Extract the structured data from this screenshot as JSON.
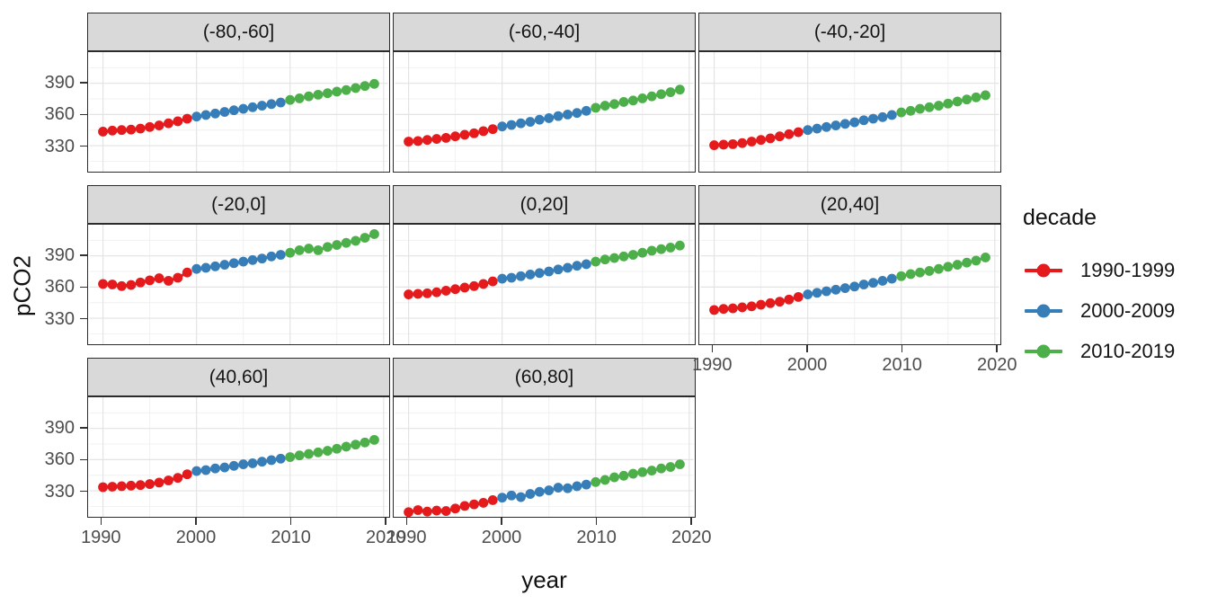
{
  "chart_data": {
    "type": "line",
    "xlabel": "year",
    "ylabel": "pCO2",
    "x_domain": [
      1988.55,
      2020.45
    ],
    "y_domain": [
      305,
      420
    ],
    "x_ticks": [
      1990,
      2000,
      2010,
      2020
    ],
    "x_minor": [
      1995,
      2005,
      2015
    ],
    "y_ticks": [
      330,
      360,
      390
    ],
    "y_minor": [
      315,
      345,
      375,
      405
    ],
    "grid": true,
    "legend": {
      "title": "decade",
      "position": "right",
      "entries": [
        {
          "label": "1990-1999",
          "color": "#E41A1C"
        },
        {
          "label": "2000-2009",
          "color": "#377EB8"
        },
        {
          "label": "2010-2019",
          "color": "#4DAF4A"
        }
      ]
    },
    "years": {
      "start": 1990,
      "end": 2019
    },
    "panels": [
      {
        "label": "(-80,-60]",
        "series": [
          {
            "name": "1990-1999",
            "values": [
              343.5,
              344.5,
              345,
              345.5,
              346.5,
              348,
              349.5,
              351.5,
              353.5,
              356
            ]
          },
          {
            "name": "2000-2009",
            "values": [
              358,
              359.5,
              361,
              362.5,
              364,
              365.5,
              367,
              368.5,
              370,
              371.5
            ]
          },
          {
            "name": "2010-2019",
            "values": [
              374,
              375.5,
              377.5,
              379,
              380.5,
              382,
              383.5,
              385.5,
              387.5,
              389.5
            ]
          }
        ]
      },
      {
        "label": "(-60,-40]",
        "series": [
          {
            "name": "1990-1999",
            "values": [
              334,
              334.5,
              335.5,
              336.5,
              337.5,
              339,
              340.5,
              342,
              344,
              346
            ]
          },
          {
            "name": "2000-2009",
            "values": [
              348.5,
              350,
              351.5,
              353,
              355,
              356.5,
              358.5,
              360,
              361.5,
              363.5
            ]
          },
          {
            "name": "2010-2019",
            "values": [
              366.5,
              368.5,
              370,
              372,
              373.5,
              375.5,
              377.5,
              379.5,
              381.5,
              384
            ]
          }
        ]
      },
      {
        "label": "(-40,-20]",
        "series": [
          {
            "name": "1990-1999",
            "values": [
              330.5,
              331,
              331.5,
              332.5,
              334,
              335.5,
              337,
              339,
              341,
              343
            ]
          },
          {
            "name": "2000-2009",
            "values": [
              345,
              346.5,
              348,
              349.5,
              351,
              352.5,
              354.5,
              356,
              357.5,
              359.5
            ]
          },
          {
            "name": "2010-2019",
            "values": [
              362,
              363.5,
              365.5,
              367,
              368.5,
              370.5,
              372.5,
              374.5,
              376.5,
              378.5
            ]
          }
        ]
      },
      {
        "label": "(-20,0]",
        "series": [
          {
            "name": "1990-1999",
            "values": [
              363,
              362.5,
              361,
              362,
              364.5,
              366.5,
              368.5,
              366,
              369,
              374
            ]
          },
          {
            "name": "2000-2009",
            "values": [
              377.5,
              378.5,
              380,
              381.5,
              383,
              384.5,
              386,
              387.5,
              389.5,
              391
            ]
          },
          {
            "name": "2010-2019",
            "values": [
              393,
              395.5,
              397,
              395.5,
              398.5,
              400.5,
              402.5,
              404.5,
              407.5,
              411
            ]
          }
        ]
      },
      {
        "label": "(0,20]",
        "series": [
          {
            "name": "1990-1999",
            "values": [
              353,
              353.5,
              354,
              355,
              356.5,
              358,
              359.5,
              361,
              363,
              365.5
            ]
          },
          {
            "name": "2000-2009",
            "values": [
              368,
              369,
              370.5,
              372,
              373.5,
              375,
              377,
              378.5,
              380.5,
              382
            ]
          },
          {
            "name": "2010-2019",
            "values": [
              384.5,
              386.5,
              388,
              389.5,
              391,
              393,
              395,
              396.5,
              398,
              400
            ]
          }
        ]
      },
      {
        "label": "(20,40]",
        "series": [
          {
            "name": "1990-1999",
            "values": [
              338,
              339,
              339.5,
              340.5,
              341.5,
              343,
              344.5,
              346,
              348,
              350.5
            ]
          },
          {
            "name": "2000-2009",
            "values": [
              353,
              354.5,
              356,
              357.5,
              359,
              360.5,
              362.5,
              364,
              366,
              368
            ]
          },
          {
            "name": "2010-2019",
            "values": [
              370.5,
              372.5,
              374,
              375.5,
              377.5,
              379.5,
              381.5,
              383.5,
              385.5,
              388.5
            ]
          }
        ]
      },
      {
        "label": "(40,60]",
        "series": [
          {
            "name": "1990-1999",
            "values": [
              333.5,
              334,
              334.5,
              335,
              335.5,
              336.5,
              338,
              340,
              342.5,
              346
            ]
          },
          {
            "name": "2000-2009",
            "values": [
              349,
              350,
              351.5,
              352.5,
              354,
              355.5,
              356.5,
              358,
              359.5,
              361
            ]
          },
          {
            "name": "2010-2019",
            "values": [
              362.5,
              364,
              365.5,
              367,
              368.5,
              370.5,
              372.5,
              374.5,
              376.5,
              379
            ]
          }
        ]
      },
      {
        "label": "(60,80]",
        "series": [
          {
            "name": "1990-1999",
            "values": [
              309.5,
              311.5,
              310,
              311,
              310.5,
              313,
              315.5,
              317,
              318.5,
              321
            ]
          },
          {
            "name": "2000-2009",
            "values": [
              323.5,
              325.5,
              324,
              327,
              329,
              330.5,
              333,
              332.5,
              334.5,
              336
            ]
          },
          {
            "name": "2010-2019",
            "values": [
              338.5,
              340.5,
              343,
              344.5,
              346.5,
              348,
              349.5,
              351.5,
              353,
              355.5
            ]
          }
        ]
      }
    ]
  }
}
